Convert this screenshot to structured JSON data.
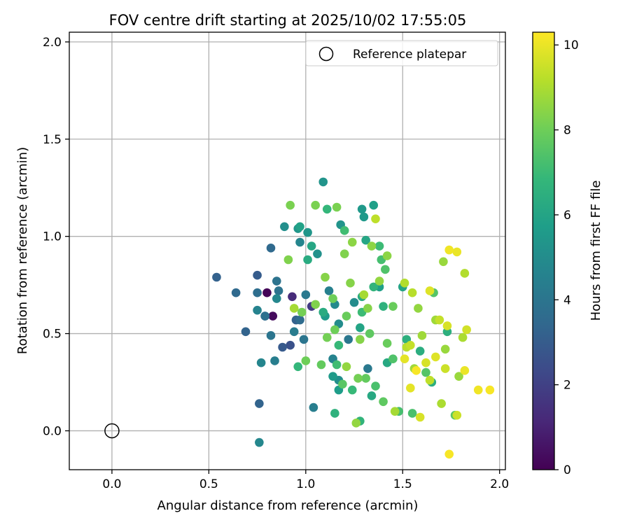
{
  "chart_data": {
    "type": "scatter",
    "title": "FOV centre drift starting at 2025/10/02 17:55:05",
    "xlabel": "Angular distance from reference (arcmin)",
    "ylabel": "Rotation from reference (arcmin)",
    "xlim": [
      -0.22,
      2.03
    ],
    "ylim": [
      -0.2,
      2.05
    ],
    "xticks": [
      0.0,
      0.5,
      1.0,
      1.5,
      2.0
    ],
    "xtick_labels": [
      "0.0",
      "0.5",
      "1.0",
      "1.5",
      "2.0"
    ],
    "yticks": [
      0.0,
      0.5,
      1.0,
      1.5,
      2.0
    ],
    "ytick_labels": [
      "0.0",
      "0.5",
      "1.0",
      "1.5",
      "2.0"
    ],
    "grid": true,
    "legend": {
      "placement": "top-right",
      "label": "Reference platepar"
    },
    "reference_point": {
      "x": 0.0,
      "y": 0.0
    },
    "colorbar": {
      "label": "Hours from first FF file",
      "min": 0,
      "max": 10.3,
      "ticks": [
        0,
        2,
        4,
        6,
        8,
        10
      ],
      "tick_labels": [
        "0",
        "2",
        "4",
        "6",
        "8",
        "10"
      ],
      "colormap": [
        "#440154",
        "#482878",
        "#3e4989",
        "#31688e",
        "#26828e",
        "#1f9e89",
        "#35b779",
        "#6ece58",
        "#b5de2b",
        "#fde725"
      ]
    },
    "points": [
      {
        "x": 0.8,
        "y": 0.71,
        "h": 0.1
      },
      {
        "x": 0.83,
        "y": 0.59,
        "h": 0.3
      },
      {
        "x": 0.93,
        "y": 0.69,
        "h": 1.3
      },
      {
        "x": 1.03,
        "y": 0.64,
        "h": 1.8
      },
      {
        "x": 0.79,
        "y": 0.59,
        "h": 2.4
      },
      {
        "x": 0.92,
        "y": 0.44,
        "h": 2.6
      },
      {
        "x": 0.88,
        "y": 0.43,
        "h": 2.9
      },
      {
        "x": 0.75,
        "y": 0.8,
        "h": 3.0
      },
      {
        "x": 0.54,
        "y": 0.79,
        "h": 3.2
      },
      {
        "x": 0.95,
        "y": 0.57,
        "h": 3.2
      },
      {
        "x": 0.76,
        "y": 0.14,
        "h": 3.3
      },
      {
        "x": 0.69,
        "y": 0.51,
        "h": 3.3
      },
      {
        "x": 0.64,
        "y": 0.71,
        "h": 3.5
      },
      {
        "x": 0.82,
        "y": 0.94,
        "h": 3.5
      },
      {
        "x": 0.97,
        "y": 0.57,
        "h": 3.6
      },
      {
        "x": 0.75,
        "y": 0.71,
        "h": 3.7
      },
      {
        "x": 0.79,
        "y": 0.59,
        "h": 3.8
      },
      {
        "x": 0.86,
        "y": 0.72,
        "h": 3.9
      },
      {
        "x": 0.85,
        "y": 0.77,
        "h": 3.9
      },
      {
        "x": 0.82,
        "y": 0.49,
        "h": 4.0
      },
      {
        "x": 0.99,
        "y": 0.47,
        "h": 4.0
      },
      {
        "x": 1.22,
        "y": 0.47,
        "h": 4.1
      },
      {
        "x": 1.0,
        "y": 0.7,
        "h": 4.2
      },
      {
        "x": 1.32,
        "y": 0.32,
        "h": 4.2
      },
      {
        "x": 0.94,
        "y": 0.51,
        "h": 4.3
      },
      {
        "x": 1.04,
        "y": 0.12,
        "h": 4.4
      },
      {
        "x": 0.84,
        "y": 0.36,
        "h": 4.4
      },
      {
        "x": 1.12,
        "y": 0.72,
        "h": 4.5
      },
      {
        "x": 1.14,
        "y": 0.37,
        "h": 4.6
      },
      {
        "x": 0.75,
        "y": 0.62,
        "h": 4.6
      },
      {
        "x": 0.77,
        "y": 0.35,
        "h": 4.7
      },
      {
        "x": 0.97,
        "y": 0.97,
        "h": 4.7
      },
      {
        "x": 0.85,
        "y": 0.68,
        "h": 4.8
      },
      {
        "x": 0.76,
        "y": -0.06,
        "h": 4.8
      },
      {
        "x": 1.15,
        "y": 0.65,
        "h": 4.9
      },
      {
        "x": 1.25,
        "y": 0.66,
        "h": 5.0
      },
      {
        "x": 1.17,
        "y": 0.55,
        "h": 5.0
      },
      {
        "x": 1.17,
        "y": 0.26,
        "h": 5.1
      },
      {
        "x": 0.89,
        "y": 1.05,
        "h": 5.1
      },
      {
        "x": 1.06,
        "y": 0.91,
        "h": 5.2
      },
      {
        "x": 1.09,
        "y": 1.28,
        "h": 5.3
      },
      {
        "x": 1.18,
        "y": 1.06,
        "h": 5.3
      },
      {
        "x": 0.96,
        "y": 1.04,
        "h": 5.4
      },
      {
        "x": 1.01,
        "y": 1.02,
        "h": 5.4
      },
      {
        "x": 1.29,
        "y": 1.14,
        "h": 5.5
      },
      {
        "x": 1.3,
        "y": 1.1,
        "h": 5.5
      },
      {
        "x": 1.1,
        "y": 0.59,
        "h": 5.6
      },
      {
        "x": 1.14,
        "y": 0.28,
        "h": 5.6
      },
      {
        "x": 1.17,
        "y": 0.21,
        "h": 5.7
      },
      {
        "x": 1.38,
        "y": 0.74,
        "h": 5.8
      },
      {
        "x": 1.35,
        "y": 1.16,
        "h": 5.8
      },
      {
        "x": 0.97,
        "y": 1.05,
        "h": 5.9
      },
      {
        "x": 1.28,
        "y": 0.53,
        "h": 6.0
      },
      {
        "x": 1.5,
        "y": 0.74,
        "h": 6.0
      },
      {
        "x": 1.31,
        "y": 0.98,
        "h": 6.1
      },
      {
        "x": 1.03,
        "y": 0.95,
        "h": 6.1
      },
      {
        "x": 1.42,
        "y": 0.35,
        "h": 6.2
      },
      {
        "x": 1.34,
        "y": 0.18,
        "h": 6.2
      },
      {
        "x": 1.29,
        "y": 0.69,
        "h": 6.3
      },
      {
        "x": 1.09,
        "y": 0.61,
        "h": 6.3
      },
      {
        "x": 1.01,
        "y": 0.88,
        "h": 6.3
      },
      {
        "x": 1.59,
        "y": 0.41,
        "h": 6.4
      },
      {
        "x": 1.65,
        "y": 0.25,
        "h": 6.4
      },
      {
        "x": 1.73,
        "y": 0.51,
        "h": 6.5
      },
      {
        "x": 1.52,
        "y": 0.47,
        "h": 6.5
      },
      {
        "x": 1.4,
        "y": 0.64,
        "h": 6.6
      },
      {
        "x": 1.15,
        "y": 0.09,
        "h": 6.6
      },
      {
        "x": 1.28,
        "y": 0.05,
        "h": 6.7
      },
      {
        "x": 1.35,
        "y": 0.74,
        "h": 6.7
      },
      {
        "x": 1.11,
        "y": 1.14,
        "h": 6.8
      },
      {
        "x": 0.96,
        "y": 0.33,
        "h": 6.8
      },
      {
        "x": 1.17,
        "y": 0.44,
        "h": 6.9
      },
      {
        "x": 1.24,
        "y": 0.21,
        "h": 6.9
      },
      {
        "x": 1.29,
        "y": 0.61,
        "h": 7.0
      },
      {
        "x": 1.38,
        "y": 0.95,
        "h": 7.0
      },
      {
        "x": 1.16,
        "y": 0.34,
        "h": 7.1
      },
      {
        "x": 1.2,
        "y": 1.03,
        "h": 7.1
      },
      {
        "x": 1.48,
        "y": 0.1,
        "h": 7.2
      },
      {
        "x": 1.39,
        "y": 0.88,
        "h": 7.2
      },
      {
        "x": 1.55,
        "y": 0.09,
        "h": 7.3
      },
      {
        "x": 1.36,
        "y": 0.23,
        "h": 7.3
      },
      {
        "x": 1.41,
        "y": 0.83,
        "h": 7.4
      },
      {
        "x": 1.45,
        "y": 0.37,
        "h": 7.4
      },
      {
        "x": 1.62,
        "y": 0.3,
        "h": 7.5
      },
      {
        "x": 1.66,
        "y": 0.71,
        "h": 7.5
      },
      {
        "x": 1.77,
        "y": 0.08,
        "h": 7.6
      },
      {
        "x": 1.19,
        "y": 0.24,
        "h": 7.6
      },
      {
        "x": 1.33,
        "y": 0.5,
        "h": 7.7
      },
      {
        "x": 1.4,
        "y": 0.15,
        "h": 7.7
      },
      {
        "x": 1.31,
        "y": 0.27,
        "h": 7.8
      },
      {
        "x": 1.08,
        "y": 0.34,
        "h": 7.8
      },
      {
        "x": 1.21,
        "y": 0.59,
        "h": 7.9
      },
      {
        "x": 1.42,
        "y": 0.45,
        "h": 7.9
      },
      {
        "x": 1.45,
        "y": 0.64,
        "h": 7.9
      },
      {
        "x": 1.14,
        "y": 0.68,
        "h": 8.0
      },
      {
        "x": 1.0,
        "y": 0.36,
        "h": 8.0
      },
      {
        "x": 1.15,
        "y": 0.52,
        "h": 8.0
      },
      {
        "x": 0.98,
        "y": 0.61,
        "h": 8.1
      },
      {
        "x": 1.11,
        "y": 0.48,
        "h": 8.1
      },
      {
        "x": 1.27,
        "y": 0.27,
        "h": 8.1
      },
      {
        "x": 0.92,
        "y": 1.16,
        "h": 8.2
      },
      {
        "x": 1.05,
        "y": 1.16,
        "h": 8.2
      },
      {
        "x": 1.16,
        "y": 1.15,
        "h": 8.2
      },
      {
        "x": 1.2,
        "y": 0.91,
        "h": 8.3
      },
      {
        "x": 0.91,
        "y": 0.88,
        "h": 8.3
      },
      {
        "x": 1.05,
        "y": 0.65,
        "h": 8.3
      },
      {
        "x": 1.1,
        "y": 0.79,
        "h": 8.4
      },
      {
        "x": 1.23,
        "y": 0.76,
        "h": 8.4
      },
      {
        "x": 1.28,
        "y": 0.47,
        "h": 8.4
      },
      {
        "x": 1.32,
        "y": 0.63,
        "h": 8.4
      },
      {
        "x": 1.34,
        "y": 0.95,
        "h": 8.5
      },
      {
        "x": 1.42,
        "y": 0.9,
        "h": 8.5
      },
      {
        "x": 1.24,
        "y": 0.97,
        "h": 8.5
      },
      {
        "x": 1.21,
        "y": 0.33,
        "h": 8.6
      },
      {
        "x": 1.26,
        "y": 0.04,
        "h": 8.6
      },
      {
        "x": 1.38,
        "y": 0.77,
        "h": 8.6
      },
      {
        "x": 1.58,
        "y": 0.63,
        "h": 8.6
      },
      {
        "x": 1.71,
        "y": 0.87,
        "h": 8.7
      },
      {
        "x": 1.72,
        "y": 0.42,
        "h": 8.7
      },
      {
        "x": 1.79,
        "y": 0.28,
        "h": 8.7
      },
      {
        "x": 1.56,
        "y": 0.32,
        "h": 8.8
      },
      {
        "x": 1.6,
        "y": 0.49,
        "h": 8.8
      },
      {
        "x": 1.67,
        "y": 0.57,
        "h": 8.8
      },
      {
        "x": 1.3,
        "y": 0.7,
        "h": 8.9
      },
      {
        "x": 1.46,
        "y": 0.1,
        "h": 8.9
      },
      {
        "x": 0.94,
        "y": 0.63,
        "h": 8.9
      },
      {
        "x": 1.7,
        "y": 0.14,
        "h": 9.0
      },
      {
        "x": 1.81,
        "y": 0.48,
        "h": 9.0
      },
      {
        "x": 1.82,
        "y": 0.81,
        "h": 9.1
      },
      {
        "x": 1.51,
        "y": 0.76,
        "h": 9.1
      },
      {
        "x": 1.55,
        "y": 0.71,
        "h": 9.2
      },
      {
        "x": 1.52,
        "y": 0.43,
        "h": 9.2
      },
      {
        "x": 1.64,
        "y": 0.26,
        "h": 9.3
      },
      {
        "x": 1.36,
        "y": 1.09,
        "h": 9.3
      },
      {
        "x": 1.69,
        "y": 0.57,
        "h": 9.4
      },
      {
        "x": 1.54,
        "y": 0.44,
        "h": 9.4
      },
      {
        "x": 1.78,
        "y": 0.08,
        "h": 9.5
      },
      {
        "x": 1.72,
        "y": 0.32,
        "h": 9.5
      },
      {
        "x": 1.83,
        "y": 0.52,
        "h": 9.6
      },
      {
        "x": 1.59,
        "y": 0.07,
        "h": 9.7
      },
      {
        "x": 1.62,
        "y": 0.35,
        "h": 9.7
      },
      {
        "x": 1.73,
        "y": 0.54,
        "h": 9.7
      },
      {
        "x": 1.67,
        "y": 0.38,
        "h": 9.8
      },
      {
        "x": 1.64,
        "y": 0.72,
        "h": 9.8
      },
      {
        "x": 1.51,
        "y": 0.37,
        "h": 9.9
      },
      {
        "x": 1.54,
        "y": 0.22,
        "h": 9.9
      },
      {
        "x": 1.82,
        "y": 0.31,
        "h": 10.0
      },
      {
        "x": 1.78,
        "y": 0.92,
        "h": 10.0
      },
      {
        "x": 1.74,
        "y": 0.93,
        "h": 10.1
      },
      {
        "x": 1.89,
        "y": 0.21,
        "h": 10.1
      },
      {
        "x": 1.95,
        "y": 0.21,
        "h": 10.2
      },
      {
        "x": 1.74,
        "y": -0.12,
        "h": 10.2
      },
      {
        "x": 1.57,
        "y": 0.31,
        "h": 10.2
      }
    ]
  }
}
